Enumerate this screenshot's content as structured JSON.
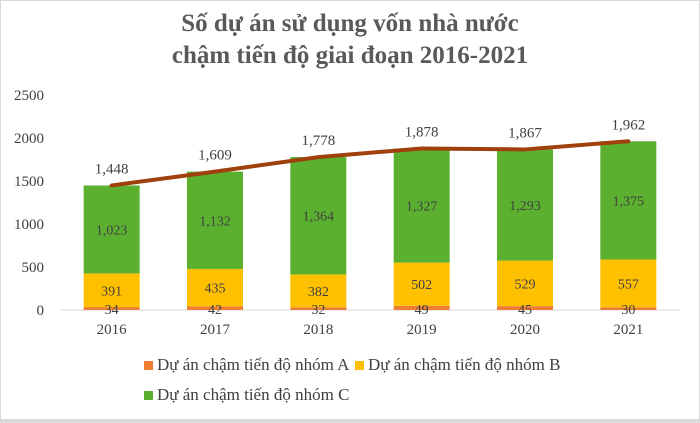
{
  "chart_data": {
    "type": "bar",
    "stacked": true,
    "title_lines": [
      "Số dự án sử dụng vốn nhà nước",
      "chậm tiến độ giai đoạn 2016-2021"
    ],
    "categories": [
      "2016",
      "2017",
      "2018",
      "2019",
      "2020",
      "2021"
    ],
    "ylim": [
      0,
      2500
    ],
    "yticks": [
      "0",
      "500",
      "1000",
      "1500",
      "2000",
      "2500"
    ],
    "grid": false,
    "legend_position": "bottom",
    "series": [
      {
        "name": "Dự án chậm tiến độ nhóm A",
        "color": "#ed7d31",
        "values": [
          34,
          42,
          32,
          49,
          45,
          30
        ],
        "labels": [
          "34",
          "42",
          "32",
          "49",
          "45",
          "30"
        ]
      },
      {
        "name": "Dự án chậm tiến độ nhóm B",
        "color": "#ffc000",
        "values": [
          391,
          435,
          382,
          502,
          529,
          557
        ],
        "labels": [
          "391",
          "435",
          "382",
          "502",
          "529",
          "557"
        ]
      },
      {
        "name": "Dự án chậm tiến độ nhóm C",
        "color": "#5bb030",
        "values": [
          1023,
          1132,
          1364,
          1327,
          1293,
          1375
        ],
        "labels": [
          "1,023",
          "1,132",
          "1,364",
          "1,327",
          "1,293",
          "1,375"
        ]
      }
    ],
    "total_line": {
      "color": "#a0400c",
      "values": [
        1448,
        1609,
        1778,
        1878,
        1867,
        1962
      ],
      "labels": [
        "1,448",
        "1,609",
        "1,778",
        "1,878",
        "1,867",
        "1,962"
      ]
    }
  }
}
